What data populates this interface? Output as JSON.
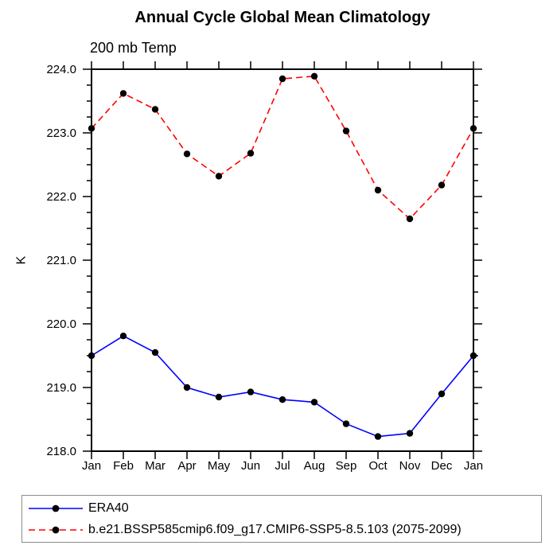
{
  "page": {
    "title": "Annual Cycle Global Mean Climatology",
    "subtitle": "200 mb Temp"
  },
  "chart_data": {
    "type": "line",
    "title": "Annual Cycle Global Mean Climatology",
    "subtitle": "200 mb Temp",
    "xlabel": "",
    "ylabel": "K",
    "categories": [
      "Jan",
      "Feb",
      "Mar",
      "Apr",
      "May",
      "Jun",
      "Jul",
      "Aug",
      "Sep",
      "Oct",
      "Nov",
      "Dec",
      "Jan"
    ],
    "ylim": [
      218.0,
      224.0
    ],
    "ytick_major_step": 1.0,
    "ytick_minor_step": 0.25,
    "ytick_labels": [
      "218.0",
      "219.0",
      "220.0",
      "221.0",
      "222.0",
      "223.0",
      "224.0"
    ],
    "grid": false,
    "legend_position": "bottom-left-box",
    "marker_color": "#000000",
    "axis_color": "#000000",
    "series": [
      {
        "name": "ERA40",
        "color": "#0000ff",
        "line_style": "solid",
        "marker": "filled-circle",
        "values": [
          219.5,
          219.81,
          219.55,
          219.0,
          218.85,
          218.93,
          218.81,
          218.77,
          218.43,
          218.23,
          218.28,
          218.9,
          219.5
        ]
      },
      {
        "name": "b.e21.BSSP585cmip6.f09_g17.CMIP6-SSP5-8.5.103 (2075-2099)",
        "color": "#ff0000",
        "line_style": "dashed",
        "marker": "filled-circle",
        "values": [
          223.07,
          223.62,
          223.37,
          222.67,
          222.32,
          222.68,
          223.85,
          223.89,
          223.03,
          222.1,
          221.65,
          222.18,
          223.07
        ]
      }
    ]
  }
}
